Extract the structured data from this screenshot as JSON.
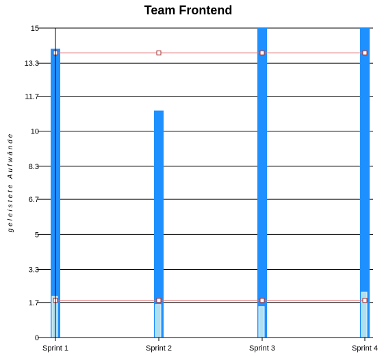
{
  "chart_data": {
    "type": "bar",
    "title": "Team Frontend",
    "xlabel": "",
    "ylabel": "geleistete Aufwände",
    "categories": [
      "Sprint 1",
      "Sprint 2",
      "Sprint 3",
      "Sprint 4"
    ],
    "y_ticks": [
      "0",
      "1.7",
      "3.3",
      "5",
      "6.7",
      "8.3",
      "10",
      "11.7",
      "13.3",
      "15"
    ],
    "ylim": [
      0,
      15
    ],
    "grid": true,
    "series": [
      {
        "values": [
          14,
          11,
          15,
          15
        ],
        "color": "#1e90ff"
      },
      {
        "values": [
          2.0,
          1.6,
          1.5,
          2.2
        ],
        "color": "#b0e0f0"
      }
    ],
    "reference_lines": [
      {
        "value": 13.8,
        "color": "#e07070"
      },
      {
        "value": 1.8,
        "color": "#e07070"
      }
    ]
  }
}
